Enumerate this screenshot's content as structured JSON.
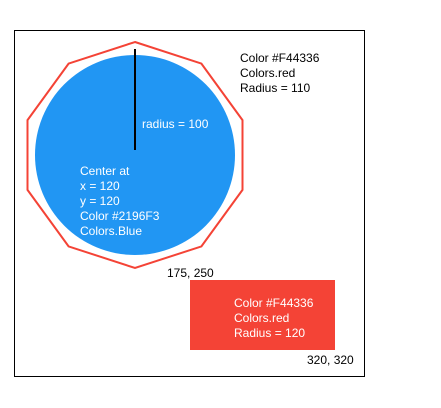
{
  "colors": {
    "blue": "#2196F3",
    "red": "#F44336",
    "frame": "#000000",
    "radius_line": "#000000"
  },
  "decagon_label": {
    "line1": "Color #F44336",
    "line2": "Colors.red",
    "line3": "Radius = 110"
  },
  "circle_label": {
    "line1": "Center at",
    "line2": "x = 120",
    "line3": "y = 120",
    "line4": "Color #2196F3",
    "line5": "Colors.Blue"
  },
  "radius_label": "radius = 100",
  "rect_label": {
    "line1": "Color #F44336",
    "line2": "Colors.red",
    "line3": "Radius = 120"
  },
  "rect_top_left": "175, 250",
  "rect_bottom_right": "320, 320"
}
